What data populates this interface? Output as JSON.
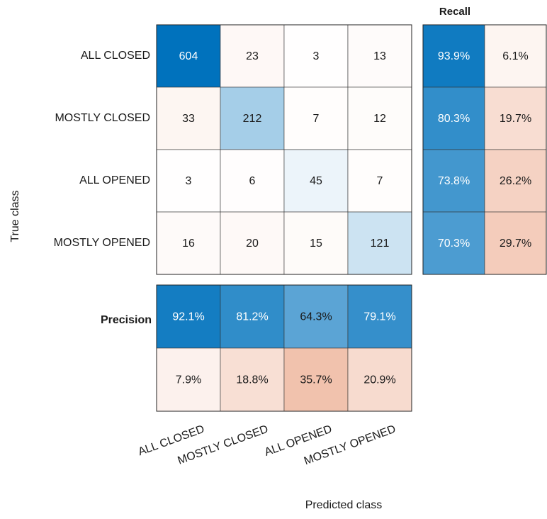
{
  "chart_data": {
    "type": "confusion",
    "xlabel": "Predicted class",
    "ylabel": "True class",
    "classes": [
      "ALL CLOSED",
      "MOSTLY CLOSED",
      "ALL OPENED",
      "MOSTLY OPENED"
    ],
    "values": [
      [
        604,
        23,
        3,
        13
      ],
      [
        33,
        212,
        7,
        12
      ],
      [
        3,
        6,
        45,
        7
      ],
      [
        16,
        20,
        15,
        121
      ]
    ],
    "recall": {
      "title": "Recall",
      "values": [
        [
          93.9,
          6.1
        ],
        [
          80.3,
          19.7
        ],
        [
          73.8,
          26.2
        ],
        [
          70.3,
          29.7
        ]
      ],
      "value_labels": [
        [
          "93.9%",
          "6.1%"
        ],
        [
          "80.3%",
          "19.7%"
        ],
        [
          "73.8%",
          "26.2%"
        ],
        [
          "70.3%",
          "29.7%"
        ]
      ]
    },
    "precision": {
      "title": "Precision",
      "values": [
        [
          92.1,
          81.2,
          64.3,
          79.1
        ],
        [
          7.9,
          18.8,
          35.7,
          20.9
        ]
      ],
      "value_labels": [
        [
          "92.1%",
          "81.2%",
          "64.3%",
          "79.1%"
        ],
        [
          "7.9%",
          "18.8%",
          "35.7%",
          "20.9%"
        ]
      ]
    },
    "colors": {
      "correct": "#0072bd",
      "incorrect": "#d95319"
    }
  }
}
